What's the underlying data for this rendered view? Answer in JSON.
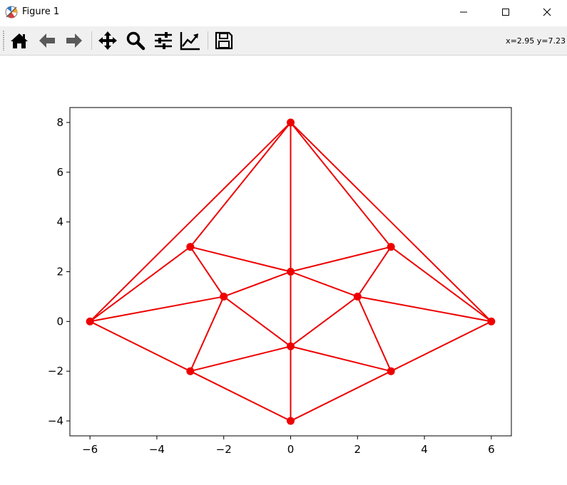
{
  "window": {
    "title": "Figure 1",
    "icon": "matplotlib-icon",
    "controls": [
      "minimize-icon",
      "maximize-icon",
      "close-icon"
    ]
  },
  "toolbar": {
    "tools": [
      {
        "name": "home",
        "icon": "home-icon"
      },
      {
        "name": "back",
        "icon": "arrow-left-icon"
      },
      {
        "name": "forward",
        "icon": "arrow-right-icon"
      },
      {
        "name": "pan",
        "icon": "move-icon"
      },
      {
        "name": "zoom",
        "icon": "zoom-icon"
      },
      {
        "name": "configure-subplots",
        "icon": "sliders-icon"
      },
      {
        "name": "edit-axis",
        "icon": "line-chart-icon"
      },
      {
        "name": "save",
        "icon": "save-icon"
      }
    ],
    "coords": "x=2.95 y=7.23"
  },
  "chart_data": {
    "type": "line",
    "title": "",
    "xlabel": "",
    "ylabel": "",
    "xlim": [
      -6.6,
      6.6
    ],
    "ylim": [
      -4.6,
      8.6
    ],
    "xticks": [
      -6,
      -4,
      -2,
      0,
      2,
      4,
      6
    ],
    "yticks": [
      -4,
      -2,
      0,
      2,
      4,
      6,
      8
    ],
    "grid": false,
    "color": "#ee0000",
    "marker": "circle",
    "nodes": [
      {
        "x": 0,
        "y": 8
      },
      {
        "x": -3,
        "y": 3
      },
      {
        "x": 3,
        "y": 3
      },
      {
        "x": 0,
        "y": 2
      },
      {
        "x": -2,
        "y": 1
      },
      {
        "x": 2,
        "y": 1
      },
      {
        "x": -6,
        "y": 0
      },
      {
        "x": 6,
        "y": 0
      },
      {
        "x": 0,
        "y": -1
      },
      {
        "x": -3,
        "y": -2
      },
      {
        "x": 3,
        "y": -2
      },
      {
        "x": 0,
        "y": -4
      }
    ],
    "segments": [
      [
        [
          -6,
          0
        ],
        [
          0,
          8
        ]
      ],
      [
        [
          6,
          0
        ],
        [
          0,
          8
        ]
      ],
      [
        [
          -3,
          3
        ],
        [
          0,
          8
        ]
      ],
      [
        [
          3,
          3
        ],
        [
          0,
          8
        ]
      ],
      [
        [
          0,
          8
        ],
        [
          0,
          -4
        ]
      ],
      [
        [
          -6,
          0
        ],
        [
          -3,
          3
        ]
      ],
      [
        [
          6,
          0
        ],
        [
          3,
          3
        ]
      ],
      [
        [
          -3,
          3
        ],
        [
          0,
          2
        ]
      ],
      [
        [
          3,
          3
        ],
        [
          0,
          2
        ]
      ],
      [
        [
          -3,
          3
        ],
        [
          -2,
          1
        ]
      ],
      [
        [
          3,
          3
        ],
        [
          2,
          1
        ]
      ],
      [
        [
          -6,
          0
        ],
        [
          -2,
          1
        ]
      ],
      [
        [
          6,
          0
        ],
        [
          2,
          1
        ]
      ],
      [
        [
          -2,
          1
        ],
        [
          0,
          2
        ]
      ],
      [
        [
          2,
          1
        ],
        [
          0,
          2
        ]
      ],
      [
        [
          -2,
          1
        ],
        [
          0,
          -1
        ]
      ],
      [
        [
          2,
          1
        ],
        [
          0,
          -1
        ]
      ],
      [
        [
          -2,
          1
        ],
        [
          -3,
          -2
        ]
      ],
      [
        [
          2,
          1
        ],
        [
          3,
          -2
        ]
      ],
      [
        [
          -6,
          0
        ],
        [
          -3,
          -2
        ]
      ],
      [
        [
          6,
          0
        ],
        [
          3,
          -2
        ]
      ],
      [
        [
          -3,
          -2
        ],
        [
          0,
          -1
        ]
      ],
      [
        [
          3,
          -2
        ],
        [
          0,
          -1
        ]
      ],
      [
        [
          -3,
          -2
        ],
        [
          0,
          -4
        ]
      ],
      [
        [
          3,
          -2
        ],
        [
          0,
          -4
        ]
      ]
    ]
  }
}
